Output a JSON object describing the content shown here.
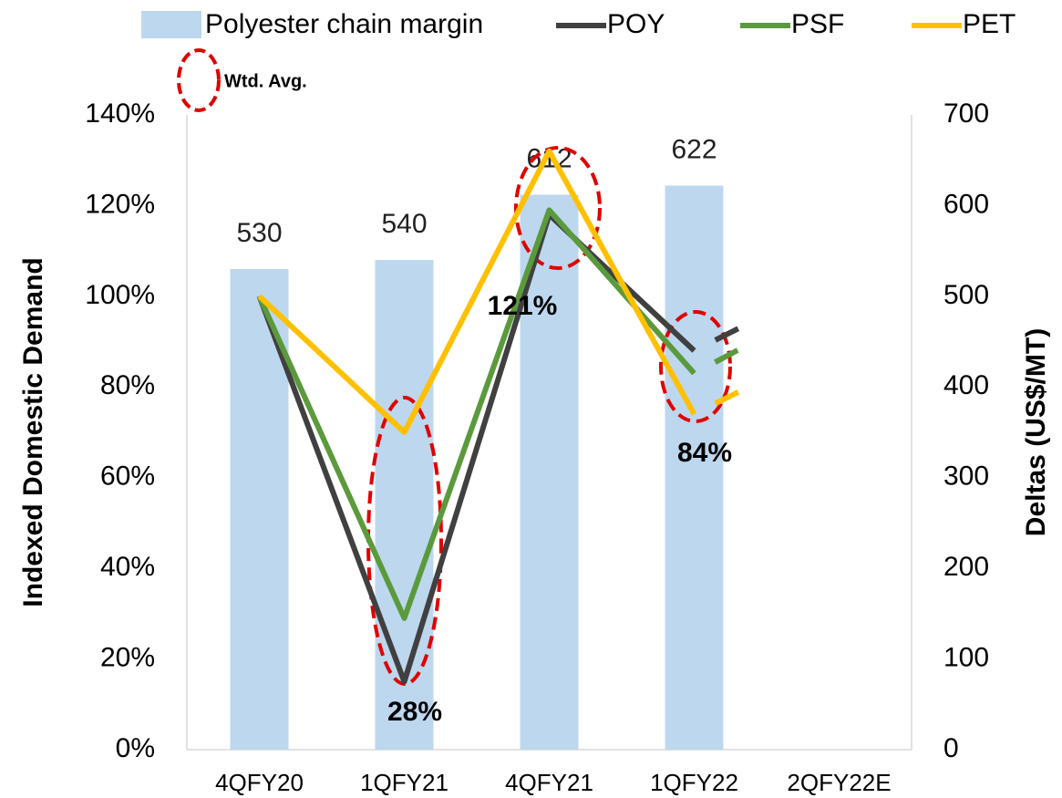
{
  "chart_data": {
    "type": "bar_line",
    "categories": [
      "4QFY20",
      "1QFY21",
      "4QFY21",
      "1QFY22",
      "2QFY22E"
    ],
    "bar_series": {
      "name": "Polyester chain margin",
      "color": "#bdd7ee",
      "axis": "y2",
      "values": [
        530,
        540,
        612,
        622,
        null
      ]
    },
    "series": [
      {
        "name": "POY",
        "color": "#404040",
        "values": [
          100,
          15,
          118,
          88,
          104
        ]
      },
      {
        "name": "PSF",
        "color": "#5b9a3c",
        "values": [
          100,
          29,
          119,
          83,
          100
        ]
      },
      {
        "name": "PET",
        "color": "#ffc000",
        "values": [
          100,
          70,
          132,
          74,
          90
        ]
      }
    ],
    "dashed_last_segment": true,
    "ylabel": "Indexed Domestic Demand",
    "y2label": "Deltas (US$/MT)",
    "ylim": [
      0,
      140
    ],
    "yticks": [
      {
        "value": 0,
        "label": "0%"
      },
      {
        "value": 20,
        "label": "20%"
      },
      {
        "value": 40,
        "label": "40%"
      },
      {
        "value": 60,
        "label": "60%"
      },
      {
        "value": 80,
        "label": "80%"
      },
      {
        "value": 100,
        "label": "100%"
      },
      {
        "value": 120,
        "label": "120%"
      },
      {
        "value": 140,
        "label": "140%"
      }
    ],
    "y2lim": [
      0,
      700
    ],
    "y2ticks": [
      0,
      100,
      200,
      300,
      400,
      500,
      600,
      700
    ],
    "legend_note": "Wtd. Avg.",
    "annotations": [
      "28%",
      "121%",
      "84%"
    ]
  }
}
